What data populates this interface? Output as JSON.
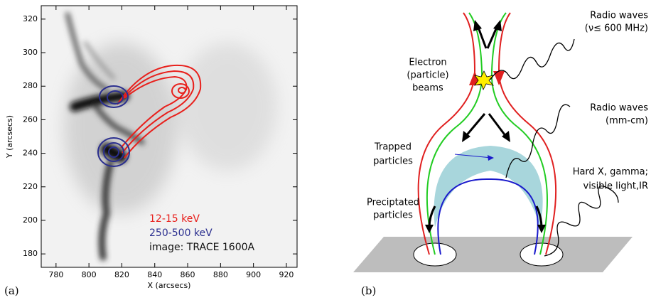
{
  "panel_a": {
    "label": "(a)",
    "x_label": "X (arcsecs)",
    "y_label": "Y (arcsecs)",
    "xlim": [
      771,
      926.5
    ],
    "ylim": [
      172,
      328
    ],
    "xticks": [
      780,
      800,
      820,
      840,
      860,
      880,
      900,
      920
    ],
    "yticks": [
      180,
      200,
      220,
      240,
      260,
      280,
      300,
      320
    ],
    "legend": [
      {
        "text": "12-15 keV",
        "color": "#e8201c"
      },
      {
        "text": "250-500 keV",
        "color": "#2b2f8f"
      },
      {
        "text": "image: TRACE 1600A",
        "color": "#111111"
      }
    ]
  },
  "panel_b": {
    "label": "(b)",
    "radio_low": [
      "Radio waves",
      "(ν≤ 600 MHz)"
    ],
    "beams": [
      "Electron",
      "(particle)",
      "beams"
    ],
    "radio_mm": [
      "Radio waves",
      "(mm-cm)"
    ],
    "trapped": [
      "Trapped",
      "particles"
    ],
    "hard_x": [
      "Hard X, gamma;",
      "visible light,IR"
    ],
    "precipitated": [
      "Preciptated",
      "particles"
    ]
  }
}
